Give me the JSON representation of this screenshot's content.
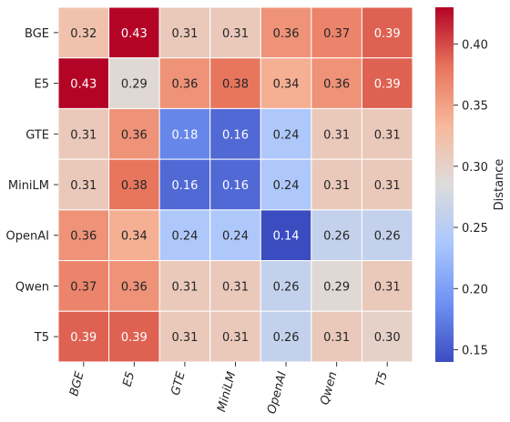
{
  "chart_data": {
    "type": "heatmap",
    "rows": [
      "BGE",
      "E5",
      "GTE",
      "MiniLM",
      "OpenAI",
      "Qwen",
      "T5"
    ],
    "columns": [
      "BGE",
      "E5",
      "GTE",
      "MiniLM",
      "OpenAI",
      "Qwen",
      "T5"
    ],
    "values": [
      [
        0.32,
        0.43,
        0.31,
        0.31,
        0.36,
        0.37,
        0.39
      ],
      [
        0.43,
        0.29,
        0.36,
        0.38,
        0.34,
        0.36,
        0.39
      ],
      [
        0.31,
        0.36,
        0.18,
        0.16,
        0.24,
        0.31,
        0.31
      ],
      [
        0.31,
        0.38,
        0.16,
        0.16,
        0.24,
        0.31,
        0.31
      ],
      [
        0.36,
        0.34,
        0.24,
        0.24,
        0.14,
        0.26,
        0.26
      ],
      [
        0.37,
        0.36,
        0.31,
        0.31,
        0.26,
        0.29,
        0.31
      ],
      [
        0.39,
        0.39,
        0.31,
        0.31,
        0.26,
        0.31,
        0.3
      ]
    ],
    "colorbar": {
      "label": "Distance",
      "min": 0.14,
      "max": 0.43,
      "ticks": [
        "0.15",
        "0.20",
        "0.25",
        "0.30",
        "0.35",
        "0.40"
      ]
    },
    "colormap": "coolwarm",
    "colormap_stops": [
      "#3b4cc0",
      "#6f92f3",
      "#aac7fd",
      "#dddcdc",
      "#f7b89c",
      "#e7745b",
      "#b40426"
    ],
    "xtick_rotation": "-75deg",
    "grid": false,
    "cell_borders_color": "#ffffff"
  }
}
